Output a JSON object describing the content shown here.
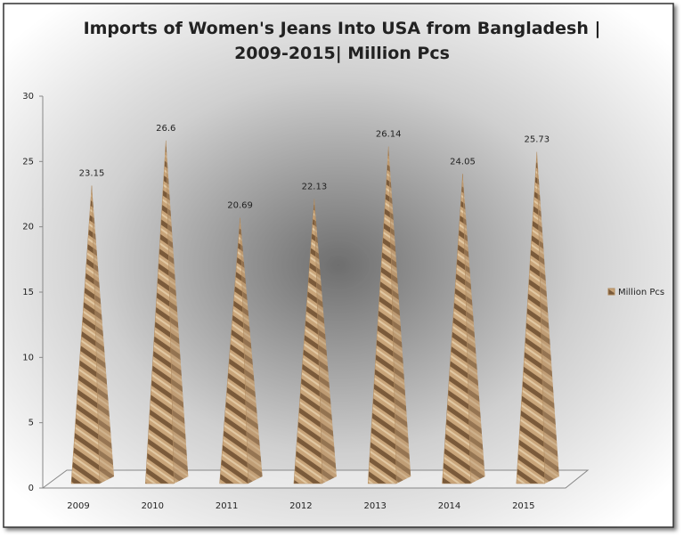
{
  "chart_data": {
    "type": "pyramid",
    "title": "Imports of Women's Jeans Into USA from Bangladesh | 2009-2015| Million Pcs",
    "categories": [
      "2009",
      "2010",
      "2011",
      "2012",
      "2013",
      "2014",
      "2015"
    ],
    "series": [
      {
        "name": "Million Pcs",
        "color": "#b08a5e",
        "values": [
          23.15,
          26.6,
          20.69,
          22.13,
          26.14,
          24.05,
          25.73
        ]
      }
    ],
    "ylim": [
      0,
      30
    ],
    "yticks": [
      0,
      5,
      10,
      15,
      20,
      25,
      30
    ],
    "grid": false,
    "legend": "right"
  }
}
